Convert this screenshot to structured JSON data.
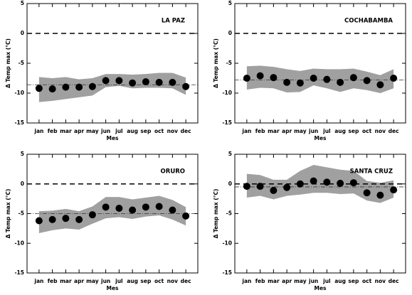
{
  "chart_data": [
    {
      "type": "dot-band",
      "title": "LA PAZ",
      "xlabel": "Mes",
      "ylabel": "Δ Temp max (°C)",
      "categories": [
        "jan",
        "feb",
        "mar",
        "apr",
        "may",
        "jun",
        "jul",
        "aug",
        "sep",
        "oct",
        "nov",
        "dec"
      ],
      "values": [
        -9.2,
        -9.3,
        -9.0,
        -9.0,
        -8.9,
        -7.9,
        -7.9,
        -8.3,
        -8.1,
        -8.2,
        -8.2,
        -8.9
      ],
      "band_upper": [
        -7.3,
        -7.5,
        -7.3,
        -7.7,
        -7.5,
        -6.8,
        -6.8,
        -6.9,
        -6.8,
        -6.6,
        -6.6,
        -7.4
      ],
      "band_lower": [
        -11.5,
        -11.3,
        -11.0,
        -10.7,
        -10.4,
        -9.0,
        -8.8,
        -9.2,
        -9.1,
        -9.1,
        -9.2,
        -10.3
      ],
      "mean": -8.6,
      "reference_line": 0,
      "ylim": [
        -15,
        5
      ],
      "yticks": [
        -15,
        -10,
        -5,
        0,
        5
      ],
      "color": "#000000",
      "band_color": "#a0a0a0"
    },
    {
      "type": "dot-band",
      "title": "COCHABAMBA",
      "xlabel": "Mes",
      "ylabel": "Δ Temp max (°C)",
      "categories": [
        "jan",
        "feb",
        "mar",
        "apr",
        "may",
        "jun",
        "jul",
        "aug",
        "sep",
        "oct",
        "nov",
        "dec"
      ],
      "values": [
        -7.5,
        -7.1,
        -7.4,
        -8.2,
        -8.3,
        -7.5,
        -7.7,
        -8.2,
        -7.4,
        -7.9,
        -8.6,
        -7.5
      ],
      "band_upper": [
        -5.5,
        -5.4,
        -5.6,
        -6.0,
        -6.3,
        -5.9,
        -6.0,
        -6.0,
        -5.9,
        -6.4,
        -7.0,
        -6.0
      ],
      "band_lower": [
        -9.4,
        -9.1,
        -9.2,
        -9.9,
        -9.8,
        -8.7,
        -9.2,
        -9.8,
        -9.2,
        -9.5,
        -10.0,
        -9.2
      ],
      "mean": -7.8,
      "reference_line": 0,
      "ylim": [
        -15,
        5
      ],
      "yticks": [
        -15,
        -10,
        -5,
        0,
        5
      ],
      "color": "#000000",
      "band_color": "#a0a0a0"
    },
    {
      "type": "dot-band",
      "title": "ORURO",
      "xlabel": "Mes",
      "ylabel": "Δ Temp max (°C)",
      "categories": [
        "jan",
        "feb",
        "mar",
        "apr",
        "may",
        "jun",
        "jul",
        "aug",
        "sep",
        "oct",
        "nov",
        "dec"
      ],
      "values": [
        -6.2,
        -6.0,
        -5.8,
        -6.0,
        -5.2,
        -3.9,
        -4.1,
        -4.4,
        -3.9,
        -3.8,
        -4.4,
        -5.4
      ],
      "band_upper": [
        -4.6,
        -4.5,
        -4.2,
        -4.6,
        -3.8,
        -2.2,
        -2.2,
        -2.6,
        -2.3,
        -2.0,
        -2.7,
        -3.9
      ],
      "band_lower": [
        -8.3,
        -7.8,
        -7.5,
        -7.7,
        -6.7,
        -5.8,
        -5.6,
        -5.9,
        -5.5,
        -5.3,
        -6.0,
        -7.0
      ],
      "mean": -5.0,
      "reference_line": 0,
      "ylim": [
        -15,
        5
      ],
      "yticks": [
        -15,
        -10,
        -5,
        0,
        5
      ],
      "color": "#000000",
      "band_color": "#a0a0a0"
    },
    {
      "type": "dot-band",
      "title": "SANTA CRUZ",
      "xlabel": "Mes",
      "ylabel": "Δ Temp max (°C)",
      "categories": [
        "jan",
        "feb",
        "mar",
        "apr",
        "may",
        "jun",
        "jul",
        "aug",
        "sep",
        "oct",
        "nov",
        "dec"
      ],
      "values": [
        -0.4,
        -0.4,
        -1.1,
        -0.6,
        0.0,
        0.5,
        0.3,
        0.1,
        0.2,
        -1.5,
        -1.9,
        -1.0
      ],
      "band_upper": [
        1.7,
        1.5,
        0.7,
        0.7,
        2.2,
        3.2,
        2.8,
        2.4,
        2.2,
        0.5,
        0.2,
        0.6
      ],
      "band_lower": [
        -2.3,
        -2.0,
        -2.6,
        -2.0,
        -1.8,
        -1.5,
        -1.5,
        -1.7,
        -1.6,
        -2.8,
        -3.2,
        -2.3
      ],
      "mean": -0.5,
      "reference_line": 0,
      "ylim": [
        -15,
        5
      ],
      "yticks": [
        -15,
        -10,
        -5,
        0,
        5
      ],
      "color": "#000000",
      "band_color": "#a0a0a0"
    }
  ]
}
